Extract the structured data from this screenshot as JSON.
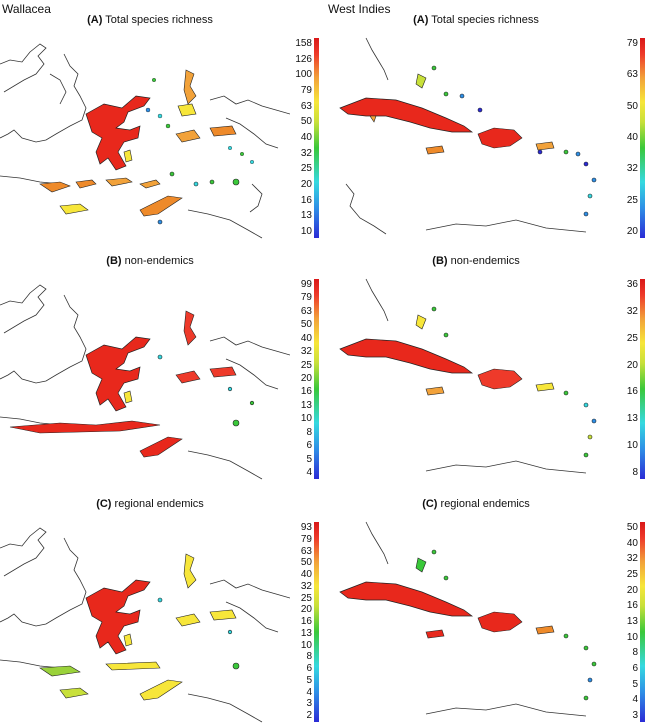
{
  "regions": [
    {
      "name": "Wallacea",
      "panels": [
        {
          "letter": "(A)",
          "label": "Total species richness",
          "ticks": [
            "158",
            "126",
            "100",
            "79",
            "63",
            "50",
            "40",
            "32",
            "25",
            "20",
            "16",
            "13",
            "10"
          ]
        },
        {
          "letter": "(B)",
          "label": "non-endemics",
          "ticks": [
            "99",
            "79",
            "63",
            "50",
            "40",
            "32",
            "25",
            "20",
            "16",
            "13",
            "10",
            "8",
            "6",
            "5",
            "4"
          ]
        },
        {
          "letter": "(C)",
          "label": "regional endemics",
          "ticks": [
            "93",
            "79",
            "63",
            "50",
            "40",
            "32",
            "25",
            "20",
            "16",
            "13",
            "10",
            "8",
            "6",
            "5",
            "4",
            "3",
            "2"
          ]
        }
      ]
    },
    {
      "name": "West Indies",
      "panels": [
        {
          "letter": "(A)",
          "label": "Total species richness",
          "ticks": [
            "79",
            "63",
            "50",
            "40",
            "32",
            "25",
            "20"
          ]
        },
        {
          "letter": "(B)",
          "label": "non-endemics",
          "ticks": [
            "36",
            "32",
            "25",
            "20",
            "16",
            "13",
            "10",
            "8"
          ]
        },
        {
          "letter": "(C)",
          "label": "regional endemics",
          "ticks": [
            "50",
            "40",
            "32",
            "25",
            "20",
            "16",
            "13",
            "10",
            "8",
            "6",
            "5",
            "4",
            "3"
          ]
        }
      ]
    }
  ],
  "colors": {
    "low": "#2b2bd6",
    "mid_low": "#35d9e0",
    "mid": "#3ac83a",
    "mid_high": "#f7e63a",
    "high_orange": "#ee8a2a",
    "high": "#e8281c"
  }
}
